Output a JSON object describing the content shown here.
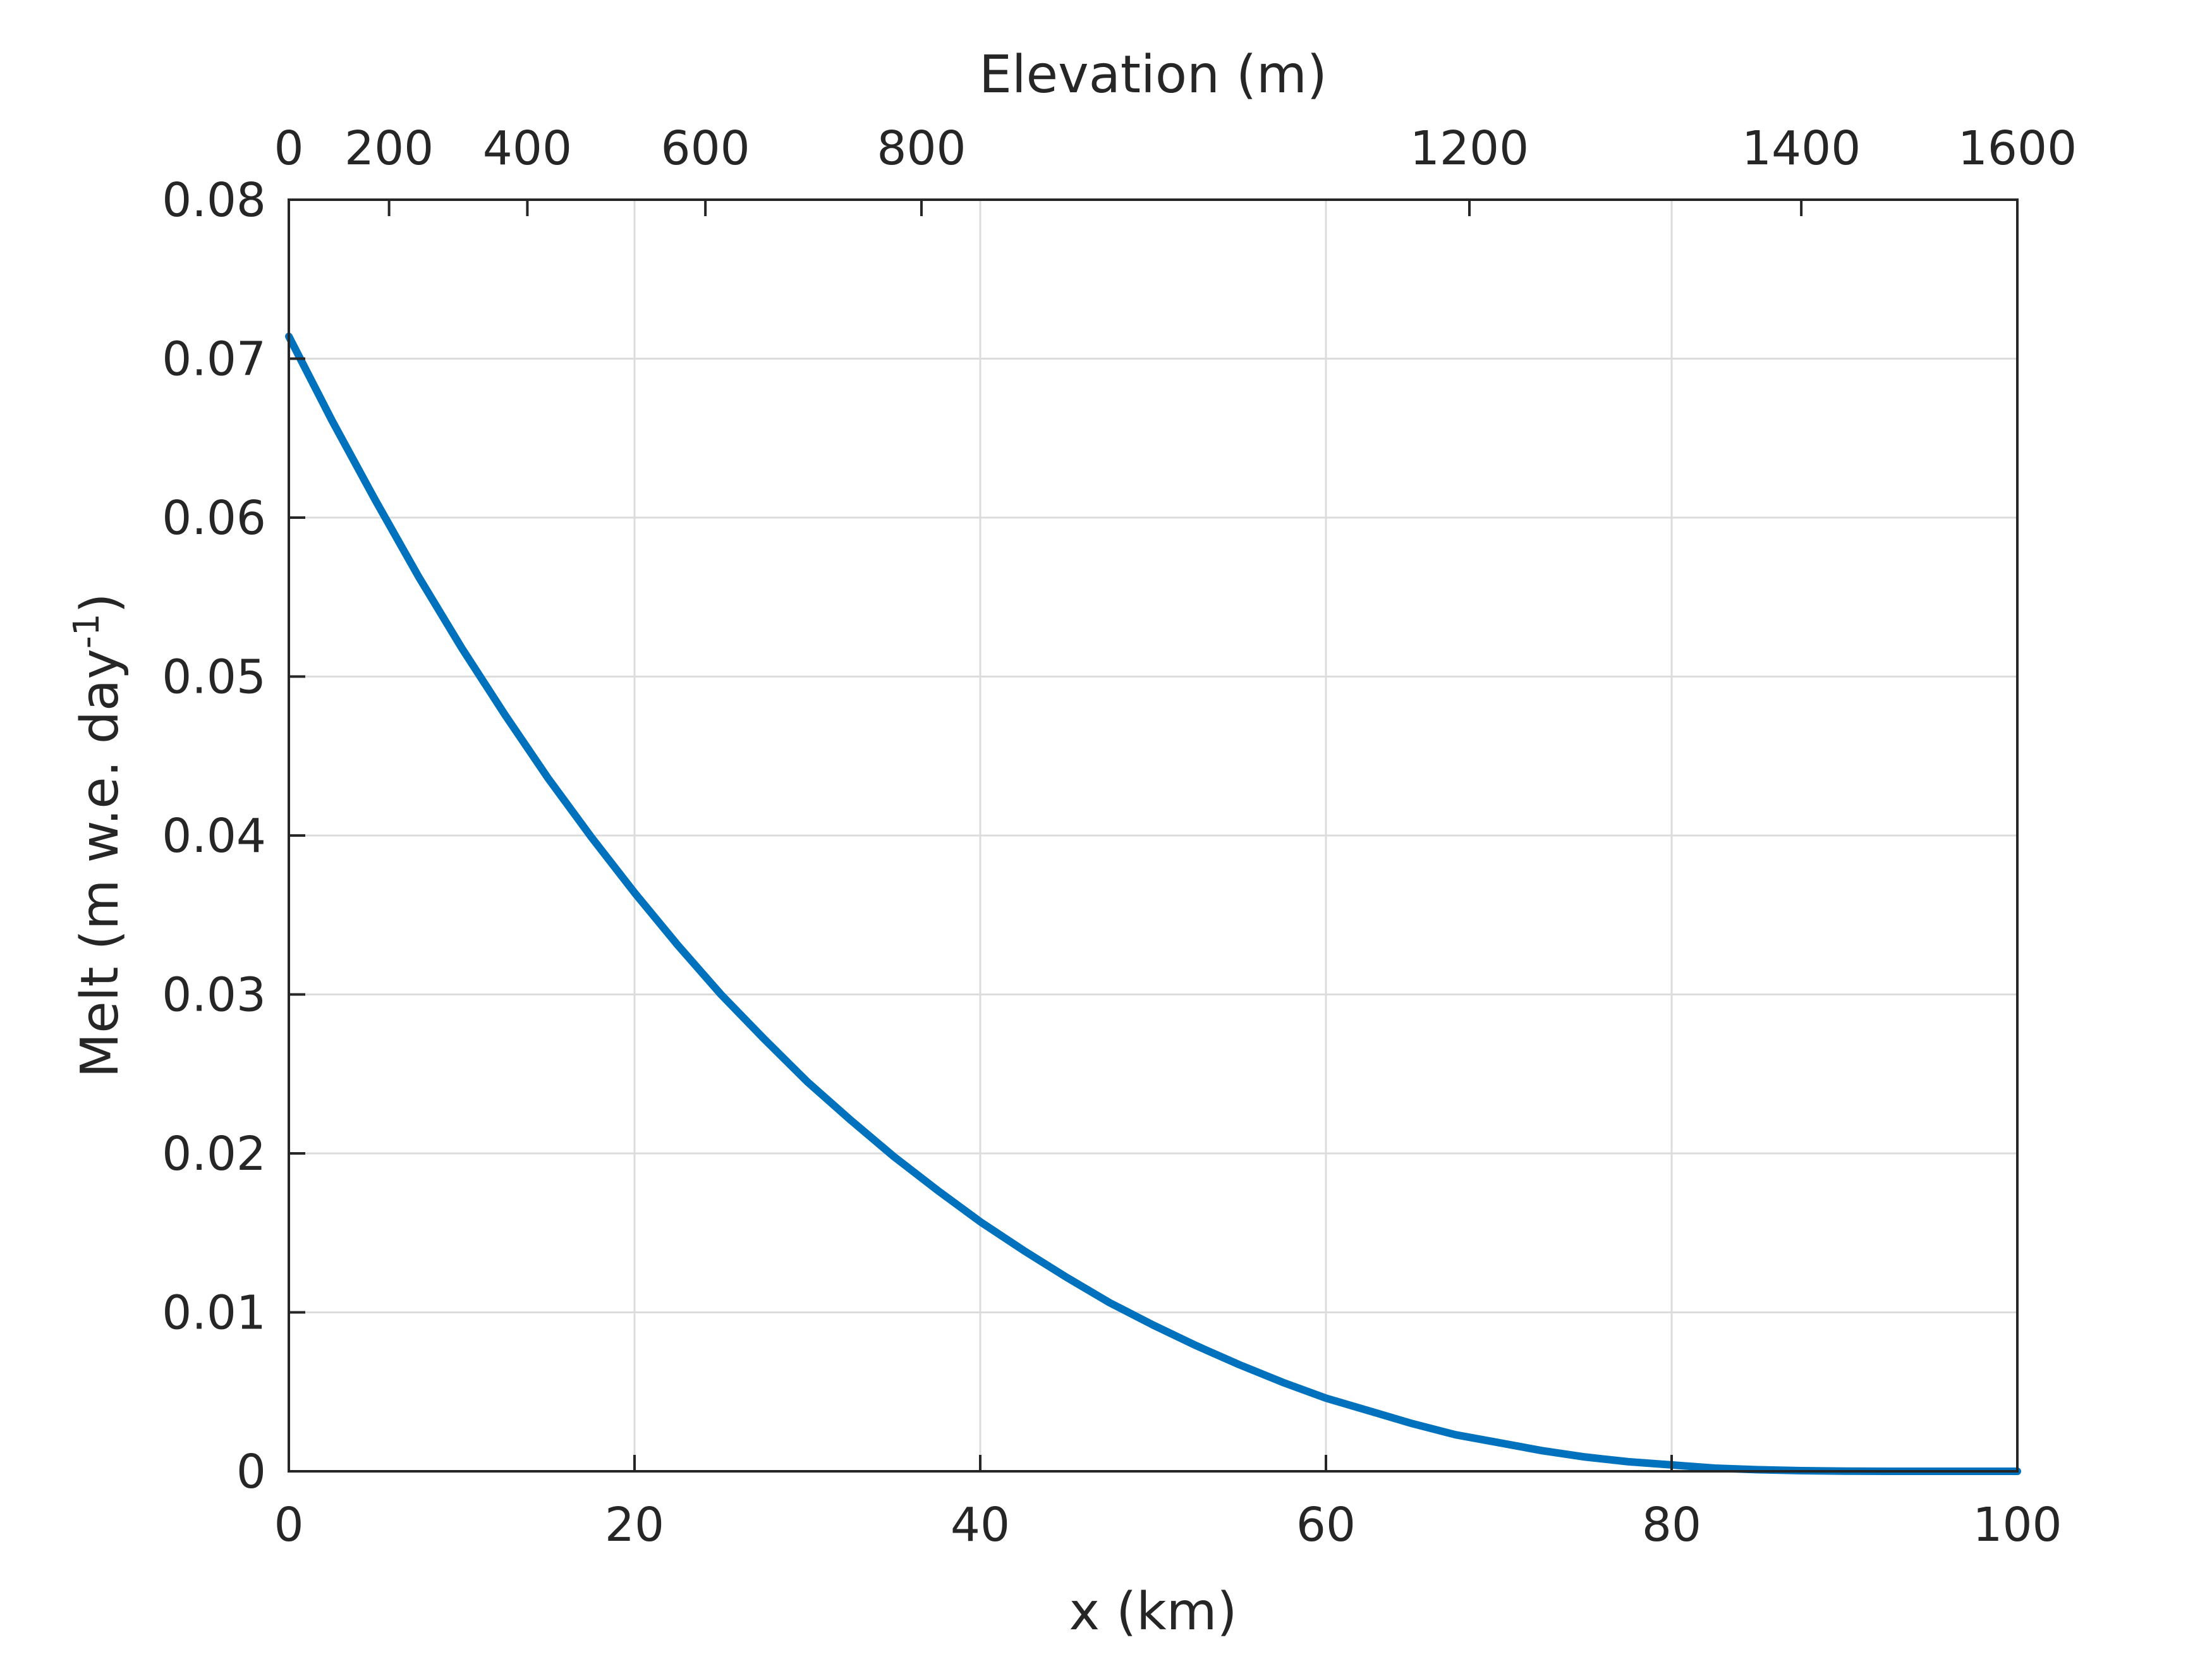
{
  "chart_data": {
    "type": "line",
    "title": "",
    "xlabel": "x (km)",
    "ylabel": "Melt (m w.e. day",
    "ylabel_superscript": "-1",
    "ylabel_close": ")",
    "top_xlabel": "Elevation (m)",
    "xlim": [
      0,
      100
    ],
    "ylim": [
      0,
      0.08
    ],
    "x_ticks": [
      0,
      20,
      40,
      60,
      80,
      100
    ],
    "x_tick_labels": [
      "0",
      "20",
      "40",
      "60",
      "80",
      "100"
    ],
    "y_ticks": [
      0,
      0.01,
      0.02,
      0.03,
      0.04,
      0.05,
      0.06,
      0.07,
      0.08
    ],
    "y_tick_labels": [
      "0",
      "0.01",
      "0.02",
      "0.03",
      "0.04",
      "0.05",
      "0.06",
      "0.07",
      "0.08"
    ],
    "top_ticks": [
      {
        "x": 0,
        "label": "0"
      },
      {
        "x": 5.8,
        "label": "200"
      },
      {
        "x": 13.8,
        "label": "400"
      },
      {
        "x": 24.1,
        "label": "600"
      },
      {
        "x": 36.6,
        "label": "800"
      },
      {
        "x": 68.3,
        "label": "1200"
      },
      {
        "x": 87.5,
        "label": "1400"
      },
      {
        "x": 100,
        "label": "1600"
      }
    ],
    "grid": true,
    "series": [
      {
        "color": "#0072bd",
        "x": [
          0,
          2.5,
          5,
          7.5,
          10,
          12.5,
          15,
          17.5,
          20,
          22.5,
          25,
          27.5,
          30,
          32.5,
          35,
          37.5,
          40,
          42.5,
          45,
          47.5,
          50,
          52.5,
          55,
          57.5,
          60,
          62.5,
          65,
          67.5,
          70,
          72.5,
          75,
          77.5,
          80,
          82.5,
          85,
          87.5,
          90,
          92.5,
          94,
          96,
          98,
          100
        ],
        "y": [
          0.0714,
          0.0661,
          0.0611,
          0.0563,
          0.0518,
          0.0476,
          0.0436,
          0.0399,
          0.0364,
          0.0331,
          0.03,
          0.0272,
          0.0245,
          0.0221,
          0.0198,
          0.0177,
          0.0157,
          0.0139,
          0.0122,
          0.0106,
          0.0092,
          0.0079,
          0.0067,
          0.0056,
          0.0046,
          0.0038,
          0.003,
          0.0023,
          0.0018,
          0.0013,
          0.0009,
          0.0006,
          0.0004,
          0.0002,
          0.0001,
          4e-05,
          1e-05,
          0.0,
          0.0,
          0.0,
          0.0,
          0.0
        ]
      }
    ]
  }
}
